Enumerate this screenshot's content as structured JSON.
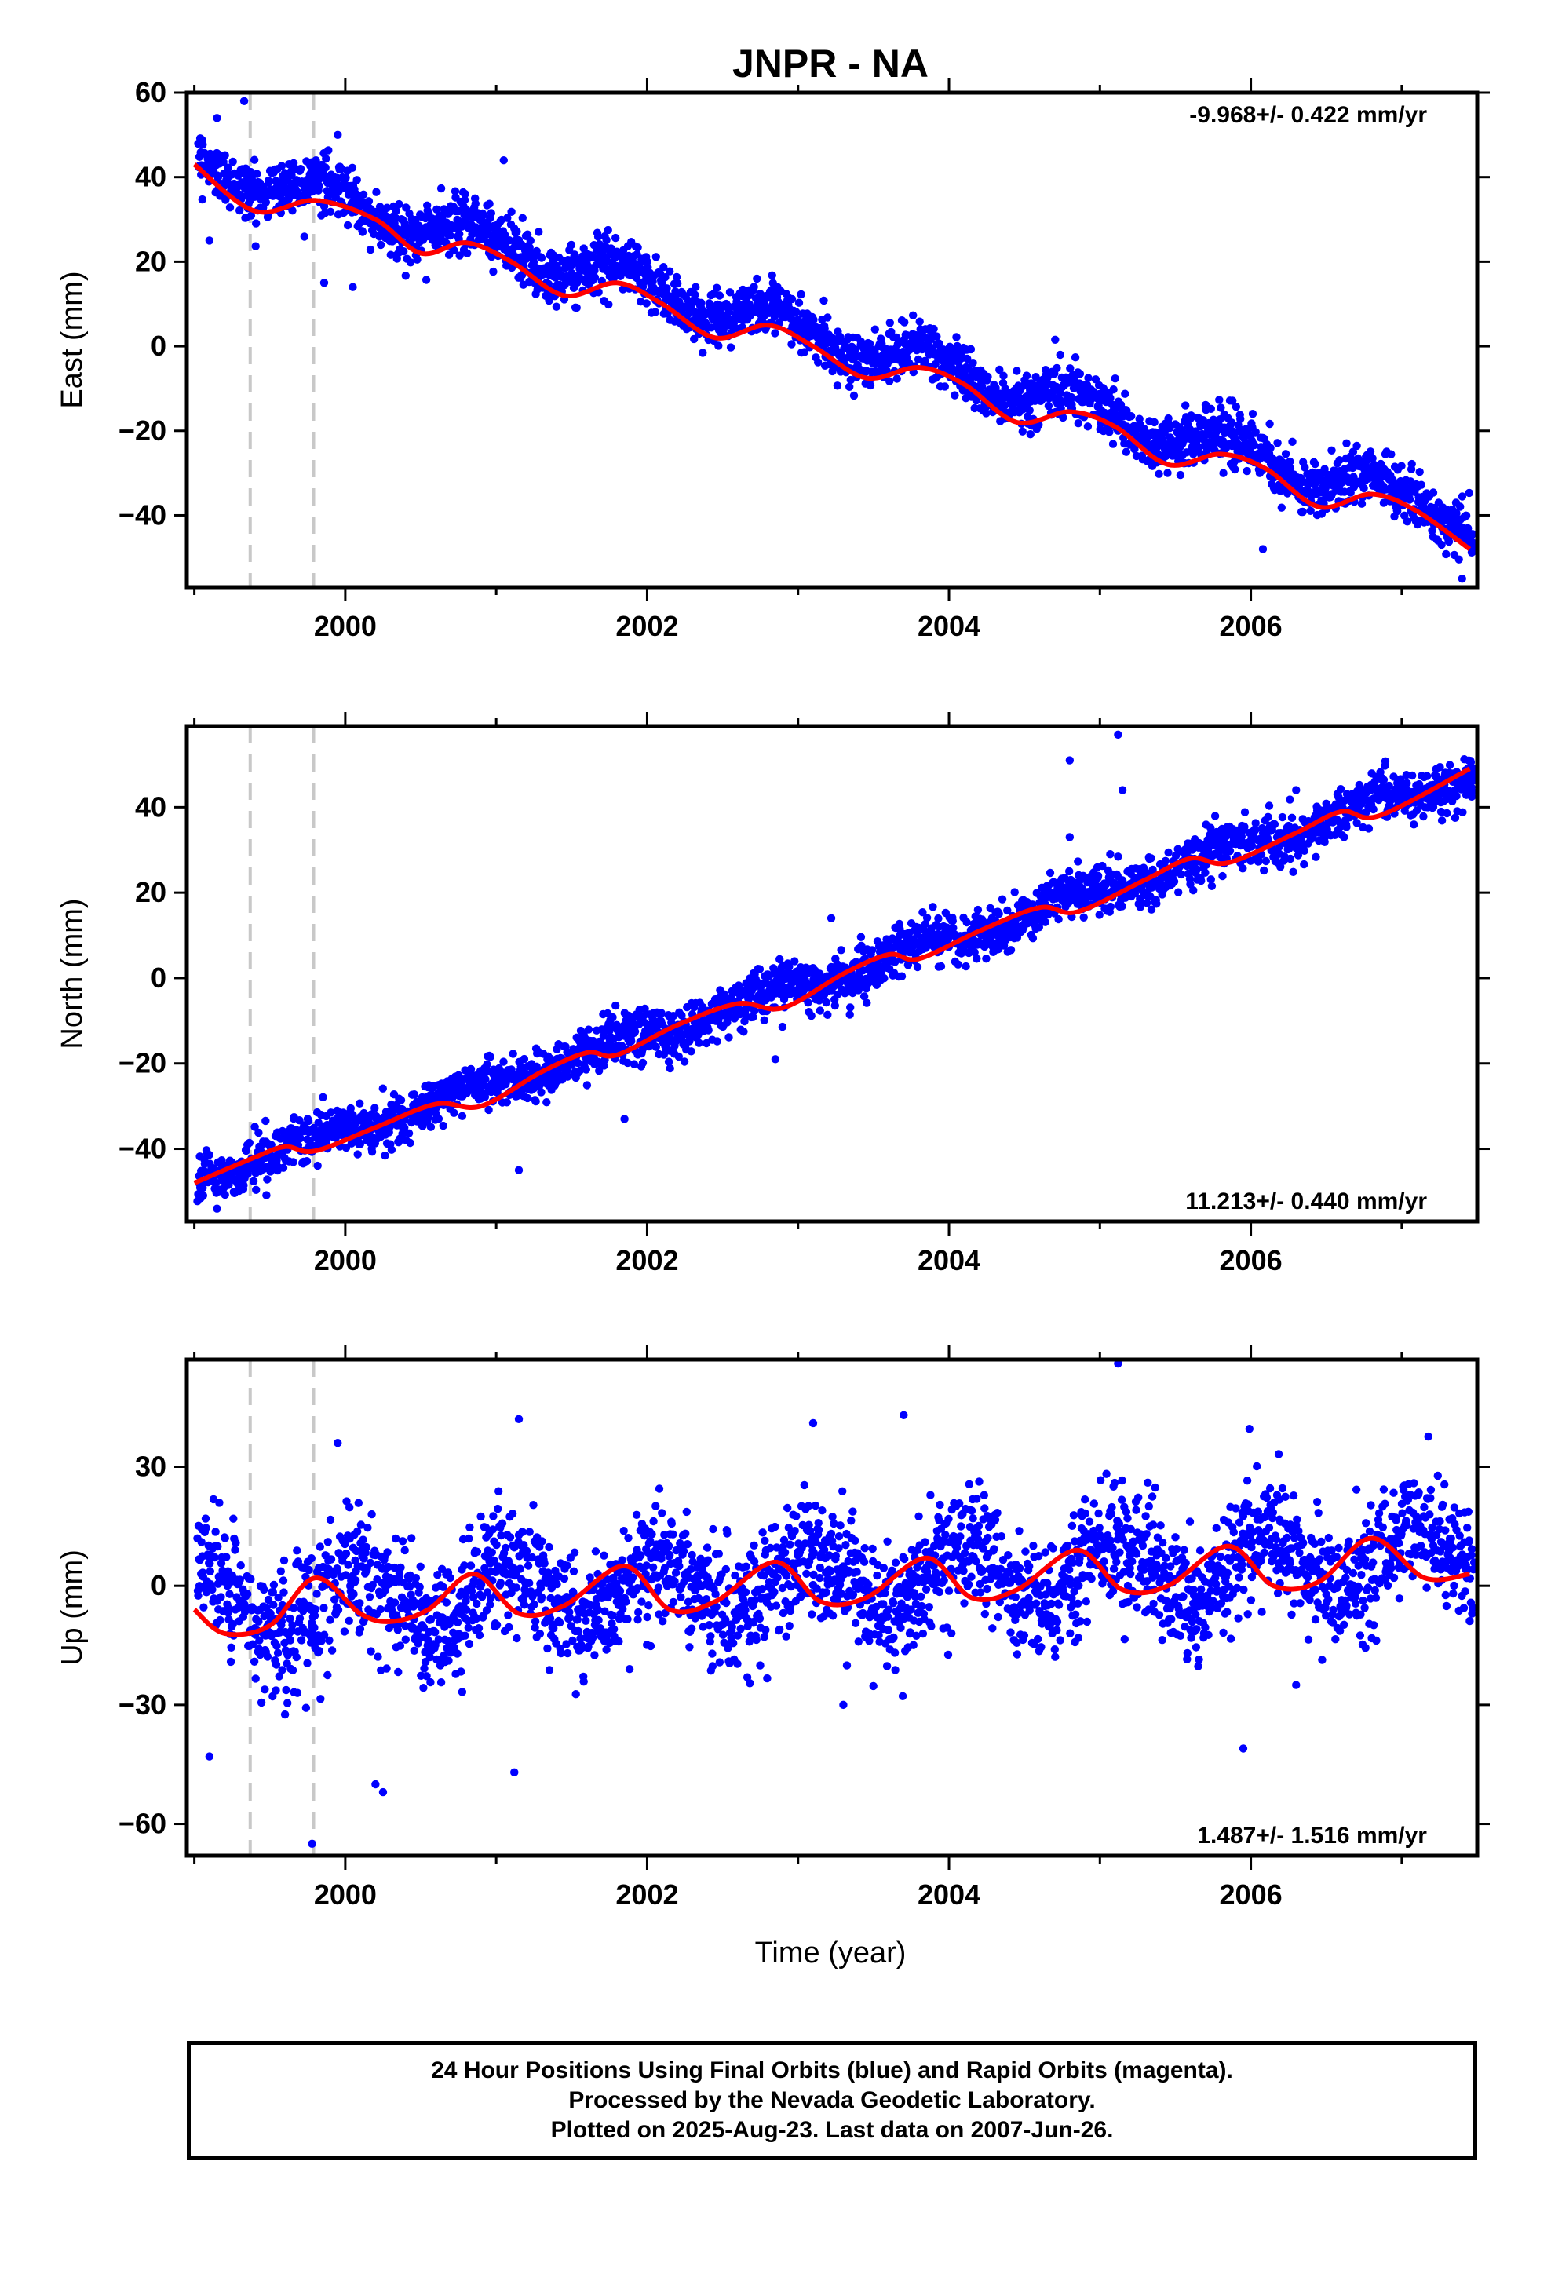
{
  "colors": {
    "final_orbits": "#0000ff",
    "model": "#ff0000",
    "equipment_change": "#c8c8c8",
    "frame": "#000000"
  },
  "chart_data": {
    "type": "scatter",
    "title": "JNPR - NA",
    "xlabel": "Time (year)",
    "xlim": [
      1998.95,
      2007.5
    ],
    "xticks": [
      2000,
      2002,
      2004,
      2006
    ],
    "vertical_lines_years": [
      1999.37,
      1999.79
    ],
    "panels": [
      {
        "key": "east",
        "ylabel": "East (mm)",
        "ylim": [
          -57,
          60
        ],
        "yticks": [
          60,
          40,
          20,
          0,
          -20,
          -40
        ],
        "rate_label": "-9.968+/- 0.422 mm/yr",
        "rate_position": "top-right",
        "trend": {
          "slope_mm_per_yr": -9.968,
          "value_at_1999": 44,
          "annual_amp_mm": 3.6,
          "annual_phase_yr": 0.6
        },
        "daily_scatter_mm": 3.2,
        "series": [
          {
            "role": "model",
            "x": [
              1999.0,
              1999.4,
              1999.8,
              2000.2,
              2000.5,
              2000.8,
              2001.1,
              2001.45,
              2001.8,
              2002.1,
              2002.45,
              2002.8,
              2003.1,
              2003.45,
              2003.8,
              2004.1,
              2004.45,
              2004.8,
              2005.1,
              2005.45,
              2005.8,
              2006.1,
              2006.45,
              2006.8,
              2007.1,
              2007.45
            ],
            "y": [
              43,
              32,
              34.5,
              30,
              22,
              24.5,
              20,
              12,
              15,
              10,
              2,
              5,
              0,
              -7.5,
              -5,
              -9,
              -18,
              -15.5,
              -19,
              -28,
              -25.5,
              -29,
              -38,
              -35,
              -39,
              -48
            ]
          },
          {
            "role": "outliers",
            "x": [
              1999.15,
              1999.33,
              1999.95,
              1999.86,
              2000.05,
              2001.05,
              1999.1,
              2006.08,
              2007.4
            ],
            "y": [
              54,
              58,
              50,
              15,
              14,
              44,
              25,
              -48,
              -55
            ]
          }
        ]
      },
      {
        "key": "north",
        "ylabel": "North (mm)",
        "ylim": [
          -57,
          59
        ],
        "yticks": [
          40,
          20,
          0,
          -20,
          -40
        ],
        "rate_label": "11.213+/- 0.440 mm/yr",
        "rate_position": "bottom-right",
        "trend": {
          "slope_mm_per_yr": 11.213,
          "value_at_1999": -47,
          "annual_amp_mm": 1.8,
          "annual_phase_yr": 0.55
        },
        "daily_scatter_mm": 2.8,
        "series": [
          {
            "role": "model",
            "x": [
              1999.0,
              1999.4,
              1999.6,
              1999.8,
              2000.2,
              2000.6,
              2000.9,
              2001.3,
              2001.6,
              2001.8,
              2002.2,
              2002.6,
              2002.9,
              2003.3,
              2003.6,
              2003.8,
              2004.2,
              2004.6,
              2004.85,
              2005.3,
              2005.6,
              2005.85,
              2006.3,
              2006.6,
              2006.85,
              2007.45
            ],
            "y": [
              -48,
              -42,
              -39.5,
              -40.5,
              -35,
              -29.5,
              -30,
              -22,
              -17.5,
              -18,
              -11,
              -6,
              -7,
              1,
              5.5,
              4.5,
              11,
              16.5,
              15.5,
              23,
              28,
              27,
              34,
              39,
              38,
              49
            ]
          },
          {
            "role": "outliers",
            "x": [
              2004.8,
              2005.12,
              2005.15,
              2004.8,
              2006.3,
              2003.22,
              2002.85,
              2001.15,
              2001.85,
              1999.15
            ],
            "y": [
              51,
              57,
              44,
              33,
              44,
              14,
              -19,
              -45,
              -33,
              -54
            ]
          }
        ]
      },
      {
        "key": "up",
        "ylabel": "Up (mm)",
        "ylim": [
          -68,
          57
        ],
        "yticks": [
          30,
          0,
          -30,
          -60
        ],
        "rate_label": "1.487+/- 1.516 mm/yr",
        "rate_position": "bottom-right",
        "trend": {
          "slope_mm_per_yr": 1.487,
          "value_at_1999": -5,
          "annual_amp_mm": 7.5,
          "annual_phase_yr": 0.85
        },
        "daily_scatter_mm": 7.5,
        "series": [
          {
            "role": "model",
            "x": [
              1999.0,
              1999.2,
              1999.5,
              1999.8,
              2000.1,
              2000.3,
              2000.55,
              2000.85,
              2001.15,
              2001.45,
              2001.85,
              2002.15,
              2002.45,
              2002.85,
              2003.15,
              2003.45,
              2003.85,
              2004.15,
              2004.45,
              2004.85,
              2005.15,
              2005.45,
              2005.85,
              2006.15,
              2006.45,
              2006.8,
              2007.15,
              2007.45
            ],
            "y": [
              -6,
              -12,
              -10,
              2,
              -7,
              -9,
              -6,
              3,
              -7,
              -5,
              5,
              -6,
              -4,
              6,
              -4,
              -3,
              7,
              -3,
              -1,
              9,
              -1,
              0,
              10,
              0,
              1,
              12,
              2,
              3
            ]
          },
          {
            "role": "outliers",
            "x": [
              2005.12,
              2001.15,
              1999.95,
              2003.7,
              2000.2,
              2003.1,
              2001.12,
              1999.1,
              2000.25,
              1999.78,
              2005.95,
              2003.3,
              2006.3
            ],
            "y": [
              56,
              42,
              36,
              43,
              -50,
              41,
              -47,
              -43,
              -52,
              -65,
              -41,
              -30,
              -25
            ]
          }
        ]
      }
    ]
  },
  "footer": {
    "line1": "24 Hour Positions Using Final Orbits (blue) and Rapid Orbits (magenta).",
    "line2": "Processed by the Nevada Geodetic Laboratory.",
    "line3": "Plotted on 2025-Aug-23. Last data on 2007-Jun-26."
  }
}
